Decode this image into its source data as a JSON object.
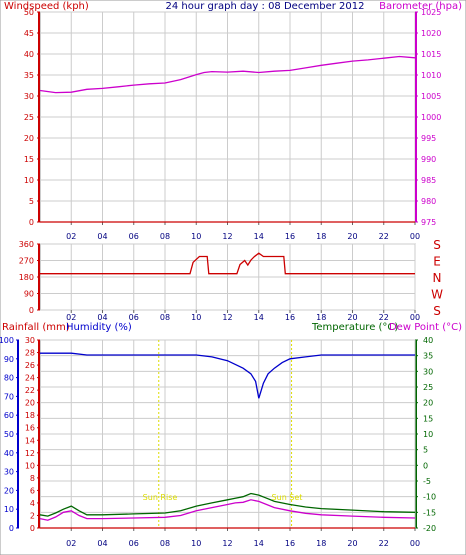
{
  "header": {
    "left_title": "Windspeed (kph)",
    "center_title": "24 hour graph day : 08 December 2012",
    "right_title": "Barometer (hpa)"
  },
  "lower_header": {
    "rainfall_label": "Rainfall (mm)",
    "humidity_label": "Humidity (%)",
    "temperature_label": "Temperature (°C)",
    "dewpoint_label": "Dew Point (°C)"
  },
  "annotations": {
    "sun_rise": "Sun Rise",
    "sun_set": "Sun Set"
  },
  "colors": {
    "windspeed": "#cc0000",
    "barometer": "#cc00cc",
    "direction": "#cc0000",
    "humidity": "#0000cc",
    "temperature": "#006600",
    "dewpoint": "#cc00cc",
    "rainfall": "#cc0000",
    "sun": "#dddd00",
    "grid": "#cccccc"
  },
  "chart_data": [
    {
      "type": "line",
      "title": "24 hour graph day : 08 December 2012",
      "x_ticks": [
        "02",
        "04",
        "06",
        "08",
        "10",
        "12",
        "14",
        "16",
        "18",
        "20",
        "22",
        "00"
      ],
      "xlim": [
        0,
        24
      ],
      "left_axis": {
        "label": "Windspeed (kph)",
        "ylim": [
          0,
          50
        ],
        "ticks": [
          0,
          5,
          10,
          15,
          20,
          25,
          30,
          35,
          40,
          45,
          50
        ]
      },
      "right_axis": {
        "label": "Barometer (hpa)",
        "ylim": [
          975,
          1025
        ],
        "ticks": [
          975,
          980,
          985,
          990,
          995,
          1000,
          1005,
          1010,
          1015,
          1020,
          1025
        ]
      },
      "series": [
        {
          "name": "Windspeed (kph)",
          "axis": "left",
          "x": [
            0,
            24
          ],
          "values": [
            0,
            0
          ]
        },
        {
          "name": "Barometer (hpa)",
          "axis": "right",
          "x": [
            0,
            1,
            2,
            3,
            4,
            5,
            6,
            7,
            8,
            9,
            10,
            10.5,
            11,
            12,
            13,
            14,
            15,
            16,
            17,
            18,
            19,
            20,
            21,
            22,
            23,
            24
          ],
          "values": [
            1006.3,
            1005.8,
            1005.9,
            1006.6,
            1006.8,
            1007.2,
            1007.6,
            1007.9,
            1008.1,
            1008.9,
            1010.1,
            1010.6,
            1010.8,
            1010.7,
            1010.9,
            1010.6,
            1010.9,
            1011.1,
            1011.7,
            1012.3,
            1012.8,
            1013.3,
            1013.6,
            1014.0,
            1014.4,
            1014.1
          ]
        }
      ]
    },
    {
      "type": "line",
      "x_ticks": [
        "02",
        "04",
        "06",
        "08",
        "10",
        "12",
        "14",
        "16",
        "18",
        "20",
        "22",
        "00"
      ],
      "xlim": [
        0,
        24
      ],
      "left_axis": {
        "ylim": [
          0,
          360
        ],
        "ticks": [
          0,
          90,
          180,
          270,
          360
        ]
      },
      "right_axis": {
        "ticks": [
          "S",
          "E",
          "N",
          "W",
          "S"
        ]
      },
      "series": [
        {
          "name": "Wind Direction",
          "x": [
            0,
            9.6,
            9.8,
            10.2,
            10.7,
            10.8,
            12.6,
            12.8,
            13.1,
            13.3,
            13.5,
            13.7,
            14,
            14.3,
            15.6,
            15.7,
            24
          ],
          "values": [
            198,
            198,
            260,
            292,
            292,
            198,
            198,
            248,
            270,
            245,
            272,
            290,
            310,
            292,
            292,
            198,
            198
          ]
        }
      ]
    },
    {
      "type": "line",
      "x_ticks": [
        "02",
        "04",
        "06",
        "08",
        "10",
        "12",
        "14",
        "16",
        "18",
        "20",
        "22",
        "00"
      ],
      "xlim": [
        0,
        24
      ],
      "rainfall_axis": {
        "label": "Rainfall (mm)",
        "ylim": [
          0,
          30
        ],
        "ticks": [
          0,
          2,
          4,
          6,
          8,
          10,
          12,
          14,
          16,
          18,
          20,
          22,
          24,
          26,
          28,
          30
        ]
      },
      "humidity_axis": {
        "label": "Humidity (%)",
        "ylim": [
          0,
          100
        ],
        "ticks": [
          0,
          10,
          20,
          30,
          40,
          50,
          60,
          70,
          80,
          90,
          100
        ]
      },
      "temperature_axis": {
        "label": "Temperature (°C) / Dew Point (°C)",
        "ylim": [
          -20,
          40
        ],
        "ticks": [
          -20,
          -15,
          -10,
          -5,
          0,
          5,
          10,
          15,
          20,
          25,
          30,
          35,
          40
        ]
      },
      "markers": [
        {
          "label": "Sun Rise",
          "x": 7.6
        },
        {
          "label": "Sun Set",
          "x": 16.1
        }
      ],
      "series": [
        {
          "name": "Humidity (%)",
          "axis": "humidity",
          "x": [
            0,
            1,
            2,
            3,
            4,
            6,
            8,
            10,
            11,
            12,
            12.5,
            13,
            13.5,
            13.8,
            14,
            14.3,
            14.6,
            15,
            15.5,
            16,
            17,
            18,
            20,
            22,
            24
          ],
          "values": [
            93,
            93,
            93,
            92,
            92,
            92,
            92,
            92,
            91,
            89,
            87,
            85,
            82,
            78,
            69,
            77,
            82,
            85,
            88,
            90,
            91,
            92,
            92,
            92,
            92
          ]
        },
        {
          "name": "Temperature (°C)",
          "axis": "temperature",
          "x": [
            0,
            0.5,
            1,
            1.5,
            2,
            2.5,
            3,
            4,
            6,
            8,
            9,
            10,
            11,
            12,
            12.5,
            13,
            13.5,
            14,
            14.5,
            15,
            16,
            17,
            18,
            20,
            22,
            24
          ],
          "values": [
            -15.8,
            -16.2,
            -15.2,
            -14.0,
            -13.0,
            -14.5,
            -15.8,
            -15.8,
            -15.5,
            -15.2,
            -14.5,
            -13.0,
            -12.0,
            -11.0,
            -10.5,
            -10.0,
            -9.0,
            -9.5,
            -10.5,
            -11.5,
            -12.5,
            -13.3,
            -13.8,
            -14.3,
            -14.8,
            -15.0
          ]
        },
        {
          "name": "Dew Point (°C)",
          "axis": "temperature",
          "x": [
            0,
            0.5,
            1,
            1.5,
            2,
            2.5,
            3,
            4,
            6,
            8,
            9,
            10,
            11,
            12,
            12.5,
            13,
            13.5,
            14,
            14.5,
            15,
            16,
            17,
            18,
            20,
            22,
            24
          ],
          "values": [
            -17.0,
            -17.5,
            -16.5,
            -15.0,
            -14.5,
            -16.0,
            -17.0,
            -17.0,
            -16.8,
            -16.6,
            -16.0,
            -14.5,
            -13.5,
            -12.5,
            -12.0,
            -11.8,
            -11.0,
            -11.5,
            -12.5,
            -13.5,
            -14.5,
            -15.3,
            -15.8,
            -16.2,
            -16.6,
            -16.8
          ]
        },
        {
          "name": "Rainfall (mm)",
          "axis": "rainfall",
          "x": [
            0,
            24
          ],
          "values": [
            0,
            0
          ]
        }
      ]
    }
  ]
}
